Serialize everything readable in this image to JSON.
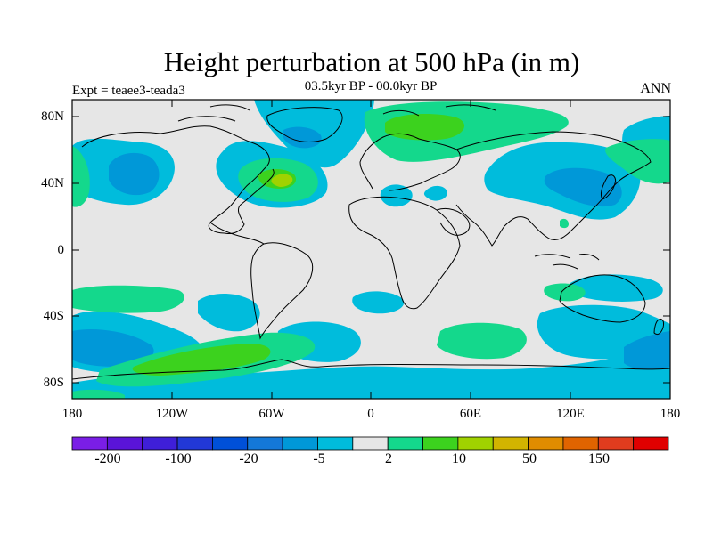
{
  "title": "Height perturbation at 500 hPa (in m)",
  "subtitle": "03.5kyr BP - 00.0kyr BP",
  "experiment": "Expt = teaee3-teada3",
  "season": "ANN",
  "axes": {
    "lat_labels": [
      "80N",
      "40N",
      "0",
      "40S",
      "80S"
    ],
    "lon_labels": [
      "180",
      "120W",
      "60W",
      "0",
      "60E",
      "120E",
      "180"
    ]
  },
  "colorbar": {
    "colors": [
      "#7a1ee6",
      "#5a14d8",
      "#3f1fd8",
      "#2238d6",
      "#0050d8",
      "#1478d8",
      "#0098d8",
      "#00bcdc",
      "#e6e6e6",
      "#14d88c",
      "#3cd21e",
      "#a0d200",
      "#d2b400",
      "#e08c00",
      "#e06400",
      "#e03c1e",
      "#e00000"
    ],
    "labels": [
      "-200",
      "-100",
      "-20",
      "-5",
      "2",
      "10",
      "50",
      "150"
    ]
  },
  "chart_data": {
    "type": "map",
    "title": "Height perturbation at 500 hPa (in m)",
    "subtitle": "03.5kyr BP - 00.0kyr BP",
    "projection": "cylindrical equidistant",
    "lon_range": [
      -180,
      180
    ],
    "lat_range": [
      -90,
      90
    ],
    "units": "m",
    "levels": [
      -200,
      -100,
      -50,
      -20,
      -10,
      -5,
      -2,
      2,
      5,
      10,
      20,
      50,
      100,
      150,
      200
    ],
    "fields": [
      {
        "level": "-5 to -2",
        "color": "#00bcdc",
        "regions": [
          "N Pacific",
          "N Atlantic",
          "Siberia/E Asia",
          "S Pacific",
          "S Atlantic",
          "Antarctic margin"
        ]
      },
      {
        "level": "-10 to -5",
        "color": "#0098d8",
        "regions": [
          "NE Pacific",
          "E Asia/Japan",
          "S Pacific 50S",
          "Ross Sea"
        ]
      },
      {
        "level": "2 to 5",
        "color": "#14d88c",
        "regions": [
          "Arctic/N Europe",
          "W Atlantic",
          "S Pacific 30S",
          "S Indian Ocean"
        ]
      },
      {
        "level": "5 to 10",
        "color": "#3cd21e",
        "regions": [
          "Barents Sea",
          "Labrador",
          "S Pacific 60S"
        ]
      },
      {
        "level": "10 to 20",
        "color": "#a0d200",
        "regions": [
          "Newfoundland"
        ]
      }
    ]
  }
}
